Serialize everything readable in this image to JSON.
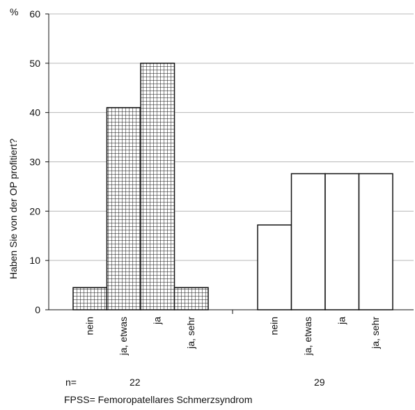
{
  "chart_data": {
    "type": "bar",
    "ylabel": "Haben Sie von der OP profitiert?",
    "yunit": "%",
    "ylim": [
      0,
      60
    ],
    "yticks": [
      0,
      10,
      20,
      30,
      40,
      50,
      60
    ],
    "grid": true,
    "groups": [
      {
        "n": "22",
        "pattern": "grid",
        "categories": [
          "nein",
          "ja, etwas",
          "ja",
          "ja, sehr"
        ],
        "values": [
          4.5,
          41,
          50,
          4.5
        ]
      },
      {
        "n": "29",
        "pattern": "none",
        "categories": [
          "nein",
          "ja, etwas",
          "ja",
          "ja, sehr"
        ],
        "values": [
          17.2,
          27.6,
          27.6,
          27.6
        ]
      }
    ]
  },
  "labels": {
    "n_prefix": "n=",
    "footnote": "FPSS= Femoropatellares Schmerzsyndrom"
  },
  "colors": {
    "bar_outline": "#111111",
    "hatch": "#111111",
    "gridline": "#b8b8b8",
    "axis": "#111111"
  }
}
